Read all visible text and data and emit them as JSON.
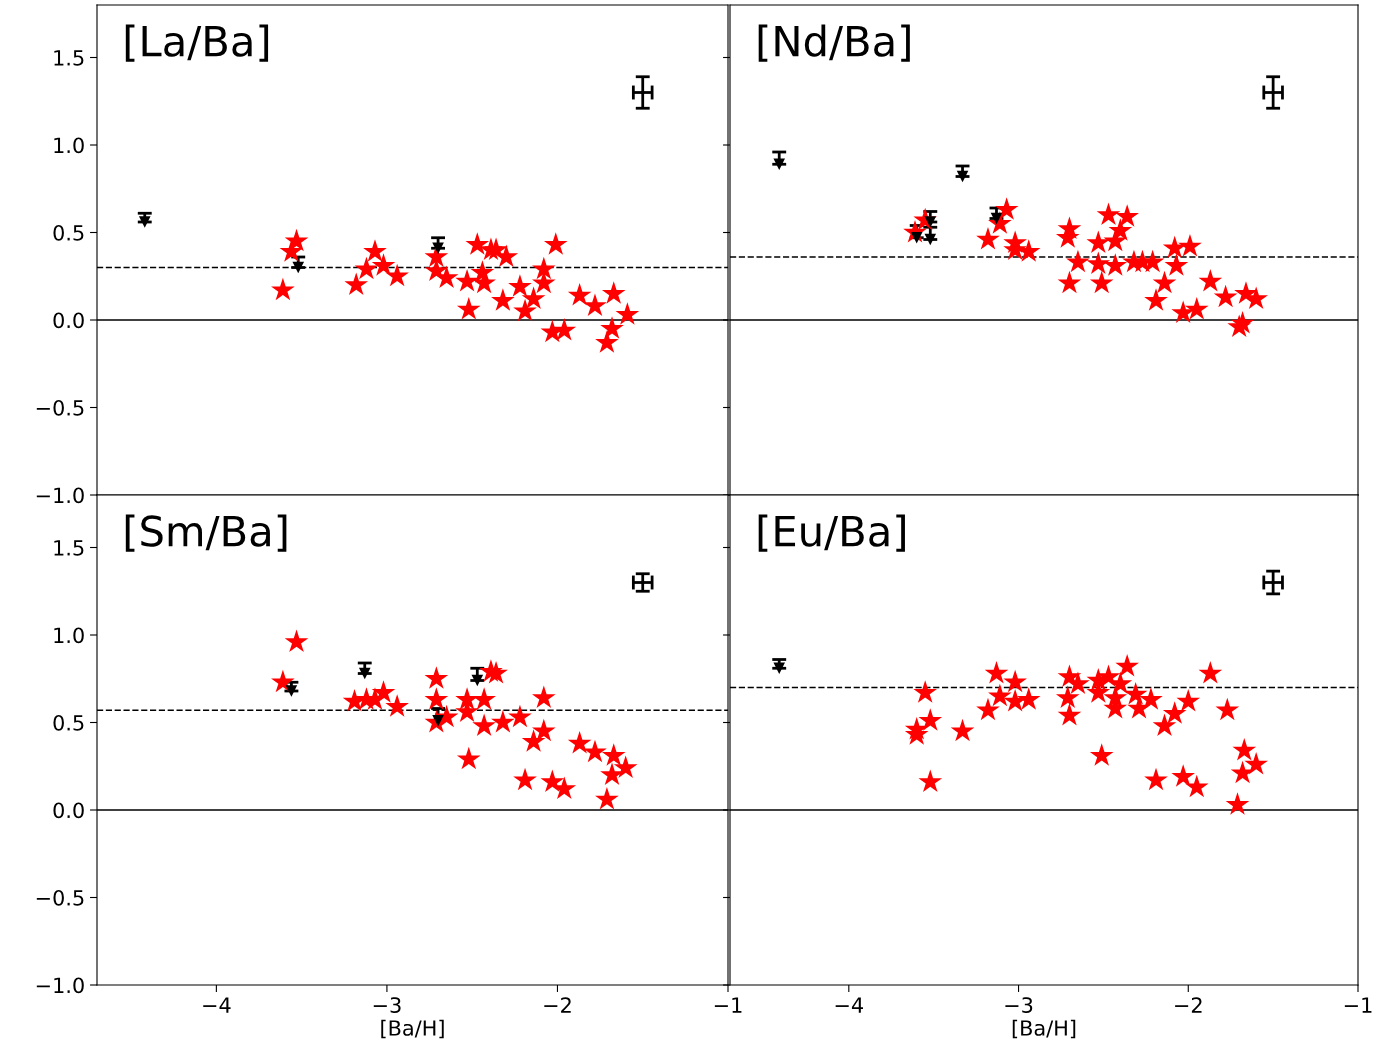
{
  "chart_data": [
    {
      "type": "scatter",
      "title": "[La/Ba]",
      "xlim": [
        -4.7,
        -1
      ],
      "ylim": [
        -1,
        1.8
      ],
      "yticks": [
        {
          "value": -1,
          "label": "−1.0"
        },
        {
          "value": -0.5,
          "label": "−0.5"
        },
        {
          "value": 0,
          "label": "0.0"
        },
        {
          "value": 0.5,
          "label": "0.5"
        },
        {
          "value": 1,
          "label": "1.0"
        },
        {
          "value": 1.5,
          "label": "1.5"
        }
      ],
      "tick_labels": "y",
      "grid": false,
      "legend": false,
      "ref_lines": [
        {
          "axis": "y",
          "value": 0.3,
          "line_style": "dashed",
          "color": "#000000"
        },
        {
          "axis": "y",
          "value": 0,
          "line_style": "solid",
          "color": "#000000"
        }
      ],
      "series": [
        {
          "color": "#ff0000",
          "marker": "star",
          "x": [
            -3.61,
            -3.53,
            -3.56,
            -3.18,
            -3.07,
            -3.12,
            -3.02,
            -2.94,
            -2.71,
            -2.71,
            -2.65,
            -2.53,
            -2.52,
            -2.47,
            -2.44,
            -2.43,
            -2.39,
            -2.36,
            -2.3,
            -2.32,
            -2.22,
            -2.19,
            -2.14,
            -2.08,
            -2.08,
            -2.01,
            -2.03,
            -1.96,
            -1.87,
            -1.78,
            -1.67,
            -1.68,
            -1.71,
            -1.59
          ],
          "values": [
            0.17,
            0.45,
            0.39,
            0.2,
            0.39,
            0.29,
            0.31,
            0.25,
            0.36,
            0.28,
            0.24,
            0.22,
            0.06,
            0.43,
            0.27,
            0.21,
            0.4,
            0.4,
            0.36,
            0.11,
            0.19,
            0.05,
            0.12,
            0.29,
            0.21,
            0.43,
            -0.07,
            -0.06,
            0.14,
            0.08,
            0.15,
            -0.05,
            -0.13,
            0.03
          ]
        },
        {
          "color": "#000000",
          "marker": "triangle",
          "x": [
            -4.42,
            -3.52,
            -2.7
          ],
          "values": [
            0.56,
            0.3,
            0.41
          ],
          "errors": [
            [
              0.56,
              0.61
            ],
            [
              0.3,
              0.36
            ],
            [
              0.41,
              0.47
            ]
          ]
        },
        {
          "color": "#000000",
          "marker": "none",
          "x": [
            -1.5
          ],
          "values": [
            1.3
          ],
          "errors": [
            0.09
          ],
          "xerrors": [
            0.055
          ]
        }
      ]
    },
    {
      "type": "scatter",
      "title": "[Nd/Ba]",
      "xlim": [
        -4.7,
        -1
      ],
      "ylim": [
        -1,
        1.8
      ],
      "yticks": [
        -1,
        -0.5,
        0,
        0.5,
        1,
        1.5
      ],
      "tick_labels": false,
      "grid": false,
      "legend": false,
      "ref_lines": [
        {
          "axis": "y",
          "value": 0.36,
          "line_style": "dashed",
          "color": "#000000"
        },
        {
          "axis": "y",
          "value": 0,
          "line_style": "solid",
          "color": "#000000"
        }
      ],
      "series": [
        {
          "color": "#ff0000",
          "marker": "star",
          "x": [
            -3.61,
            -3.55,
            -3.07,
            -3.11,
            -3.18,
            -3.02,
            -3.02,
            -2.94,
            -2.7,
            -2.71,
            -2.7,
            -2.65,
            -2.53,
            -2.53,
            -2.51,
            -2.47,
            -2.43,
            -2.43,
            -2.4,
            -2.36,
            -2.32,
            -2.27,
            -2.21,
            -2.08,
            -1.99,
            -2.07,
            -2.14,
            -2.19,
            -2.03,
            -1.95,
            -1.87,
            -1.78,
            -1.66,
            -1.6,
            -1.7,
            -1.68
          ],
          "values": [
            0.5,
            0.57,
            0.63,
            0.55,
            0.46,
            0.44,
            0.4,
            0.39,
            0.52,
            0.47,
            0.21,
            0.33,
            0.44,
            0.32,
            0.21,
            0.6,
            0.31,
            0.45,
            0.51,
            0.59,
            0.33,
            0.33,
            0.33,
            0.41,
            0.42,
            0.31,
            0.21,
            0.11,
            0.04,
            0.06,
            0.22,
            0.13,
            0.15,
            0.12,
            -0.04,
            -0.02
          ]
        },
        {
          "color": "#000000",
          "marker": "triangle",
          "x": [
            -4.41,
            -3.33,
            -3.6,
            -3.52,
            -3.52,
            -3.13
          ],
          "values": [
            0.89,
            0.82,
            0.47,
            0.56,
            0.46,
            0.58
          ],
          "errors": [
            [
              0.89,
              0.96
            ],
            [
              0.82,
              0.88
            ],
            [
              0.47,
              0.54
            ],
            [
              0.56,
              0.62
            ],
            [
              0.46,
              0.53
            ],
            [
              0.58,
              0.64
            ]
          ]
        },
        {
          "color": "#000000",
          "marker": "none",
          "x": [
            -1.5
          ],
          "values": [
            1.3
          ],
          "errors": [
            0.09
          ],
          "xerrors": [
            0.055
          ]
        }
      ]
    },
    {
      "type": "scatter",
      "title": "[Sm/Ba]",
      "xlabel": "[Ba/H]",
      "xlim": [
        -4.7,
        -1
      ],
      "ylim": [
        -1,
        1.8
      ],
      "xticks": [
        {
          "value": -4,
          "label": "−4"
        },
        {
          "value": -3,
          "label": "−3"
        },
        {
          "value": -2,
          "label": "−2"
        },
        {
          "value": -1,
          "label": "−1"
        }
      ],
      "yticks": [
        {
          "value": -1,
          "label": "−1.0"
        },
        {
          "value": -0.5,
          "label": "−0.5"
        },
        {
          "value": 0,
          "label": "0.0"
        },
        {
          "value": 0.5,
          "label": "0.5"
        },
        {
          "value": 1,
          "label": "1.0"
        },
        {
          "value": 1.5,
          "label": "1.5"
        }
      ],
      "grid": false,
      "legend": false,
      "ref_lines": [
        {
          "axis": "y",
          "value": 0.57,
          "line_style": "dashed",
          "color": "#000000"
        },
        {
          "axis": "y",
          "value": 0,
          "line_style": "solid",
          "color": "#000000"
        }
      ],
      "series": [
        {
          "color": "#ff0000",
          "marker": "star",
          "x": [
            -3.53,
            -3.61,
            -3.19,
            -3.12,
            -3.07,
            -3.02,
            -2.94,
            -2.71,
            -2.71,
            -2.65,
            -2.71,
            -2.53,
            -2.53,
            -2.43,
            -2.43,
            -2.52,
            -2.39,
            -2.36,
            -2.32,
            -2.22,
            -2.08,
            -2.08,
            -2.14,
            -2.19,
            -2.03,
            -1.96,
            -1.87,
            -1.78,
            -1.67,
            -1.68,
            -1.6,
            -1.71
          ],
          "values": [
            0.96,
            0.73,
            0.62,
            0.63,
            0.63,
            0.67,
            0.59,
            0.75,
            0.63,
            0.53,
            0.5,
            0.63,
            0.56,
            0.63,
            0.48,
            0.29,
            0.79,
            0.78,
            0.5,
            0.53,
            0.64,
            0.45,
            0.39,
            0.17,
            0.16,
            0.12,
            0.38,
            0.33,
            0.31,
            0.2,
            0.24,
            0.06
          ]
        },
        {
          "color": "#000000",
          "marker": "triangle",
          "x": [
            -3.56,
            -3.13,
            -2.47,
            -2.7
          ],
          "values": [
            0.68,
            0.78,
            0.74,
            0.51
          ],
          "errors": [
            [
              0.68,
              0.73
            ],
            [
              0.78,
              0.84
            ],
            [
              0.74,
              0.81
            ],
            [
              0.51,
              0.58
            ]
          ]
        },
        {
          "color": "#000000",
          "marker": "none",
          "x": [
            -1.5
          ],
          "values": [
            1.3
          ],
          "errors": [
            0.05
          ],
          "xerrors": [
            0.055
          ]
        }
      ]
    },
    {
      "type": "scatter",
      "title": "[Eu/Ba]",
      "xlabel": "[Ba/H]",
      "xlim": [
        -4.7,
        -1
      ],
      "ylim": [
        -1,
        1.8
      ],
      "xticks": [
        {
          "value": -4,
          "label": "−4"
        },
        {
          "value": -3,
          "label": "−3"
        },
        {
          "value": -2,
          "label": "−2"
        },
        {
          "value": -1,
          "label": "−1"
        }
      ],
      "yticks": [
        -1,
        -0.5,
        0,
        0.5,
        1,
        1.5
      ],
      "tick_labels": "x",
      "grid": false,
      "legend": false,
      "ref_lines": [
        {
          "axis": "y",
          "value": 0.7,
          "line_style": "dashed",
          "color": "#000000"
        },
        {
          "axis": "y",
          "value": 0,
          "line_style": "solid",
          "color": "#000000"
        }
      ],
      "series": [
        {
          "color": "#ff0000",
          "marker": "star",
          "x": [
            -3.55,
            -3.52,
            -3.6,
            -3.6,
            -3.52,
            -3.33,
            -3.18,
            -3.13,
            -3.11,
            -3.02,
            -3.02,
            -2.94,
            -2.7,
            -2.65,
            -2.71,
            -2.7,
            -2.51,
            -2.53,
            -2.47,
            -2.53,
            -2.43,
            -2.43,
            -2.36,
            -2.4,
            -2.31,
            -2.29,
            -2.22,
            -2.19,
            -2.14,
            -2.08,
            -2.0,
            -1.87,
            -2.03,
            -1.95,
            -1.77,
            -1.67,
            -1.6,
            -1.68,
            -1.71
          ],
          "values": [
            0.67,
            0.51,
            0.46,
            0.43,
            0.16,
            0.45,
            0.57,
            0.78,
            0.65,
            0.73,
            0.62,
            0.63,
            0.76,
            0.72,
            0.64,
            0.54,
            0.31,
            0.74,
            0.76,
            0.67,
            0.64,
            0.58,
            0.82,
            0.72,
            0.66,
            0.58,
            0.63,
            0.17,
            0.48,
            0.55,
            0.62,
            0.78,
            0.19,
            0.13,
            0.57,
            0.34,
            0.26,
            0.21,
            0.03
          ]
        },
        {
          "color": "#000000",
          "marker": "triangle",
          "x": [
            -4.41
          ],
          "values": [
            0.81
          ],
          "errors": [
            [
              0.81,
              0.86
            ]
          ]
        },
        {
          "color": "#000000",
          "marker": "none",
          "x": [
            -1.5
          ],
          "values": [
            1.3
          ],
          "errors": [
            0.065
          ],
          "xerrors": [
            0.055
          ]
        }
      ]
    }
  ]
}
